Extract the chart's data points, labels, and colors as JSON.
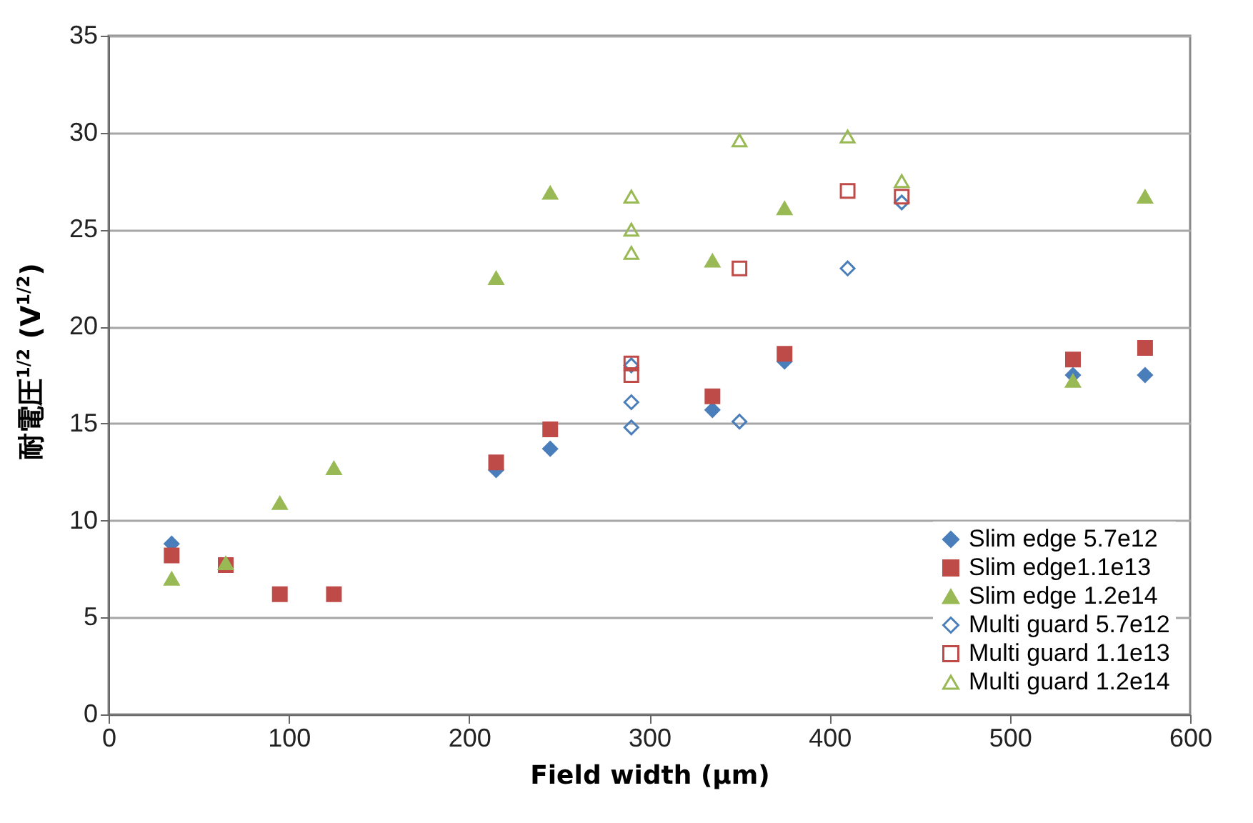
{
  "chart_data": {
    "type": "scatter",
    "xlabel": "Field width (µm)",
    "ylabel": "耐電圧$^{1/2}$ (V$^{1/2}$)",
    "xlim": [
      0,
      600
    ],
    "xticks": [
      0,
      100,
      200,
      300,
      400,
      500,
      600
    ],
    "ylim": [
      0,
      35
    ],
    "yticks": [
      0,
      5,
      10,
      15,
      20,
      25,
      30,
      35
    ],
    "grid": "y",
    "legend": "bottom right",
    "series": [
      {
        "name": "Slim edge 5.7e12",
        "color": "#4a7ebb",
        "marker": "diamond",
        "x": [
          35,
          65,
          95,
          125,
          215,
          245,
          335,
          375,
          535,
          575
        ],
        "values": [
          8.8,
          null,
          null,
          null,
          12.6,
          13.7,
          15.7,
          18.2,
          17.5,
          17.5
        ]
      },
      {
        "name": "Slim edge1.1e13",
        "color": "#be4b48",
        "marker": "square",
        "x": [
          35,
          65,
          95,
          125,
          215,
          245,
          335,
          375,
          535,
          575
        ],
        "values": [
          8.2,
          7.7,
          6.2,
          6.2,
          13.0,
          14.7,
          16.4,
          18.6,
          18.3,
          18.9
        ]
      },
      {
        "name": "Slim edge 1.2e14",
        "color": "#98b954",
        "marker": "triangle",
        "x": [
          35,
          65,
          95,
          125,
          215,
          245,
          335,
          375,
          535,
          575
        ],
        "values": [
          7.0,
          7.8,
          10.9,
          12.7,
          22.5,
          26.9,
          23.4,
          26.1,
          17.2,
          26.7
        ]
      },
      {
        "name": "Multi guard 5.7e12",
        "color": "#4a7ebb",
        "marker": "diamond",
        "x": [
          290,
          290,
          290,
          350,
          410,
          440
        ],
        "values": [
          18.0,
          16.1,
          14.8,
          15.1,
          23.0,
          26.4
        ]
      },
      {
        "name": "Multi guard 1.1e13",
        "color": "#be4b48",
        "marker": "square",
        "x": [
          290,
          290,
          350,
          410,
          440
        ],
        "values": [
          18.1,
          17.5,
          23.0,
          27.0,
          26.7
        ]
      },
      {
        "name": "Multi guard 1.2e14",
        "color": "#98b954",
        "marker": "triangle",
        "x": [
          290,
          290,
          290,
          350,
          410,
          440
        ],
        "values": [
          26.7,
          25.0,
          23.8,
          29.6,
          29.8,
          27.5
        ]
      }
    ]
  }
}
